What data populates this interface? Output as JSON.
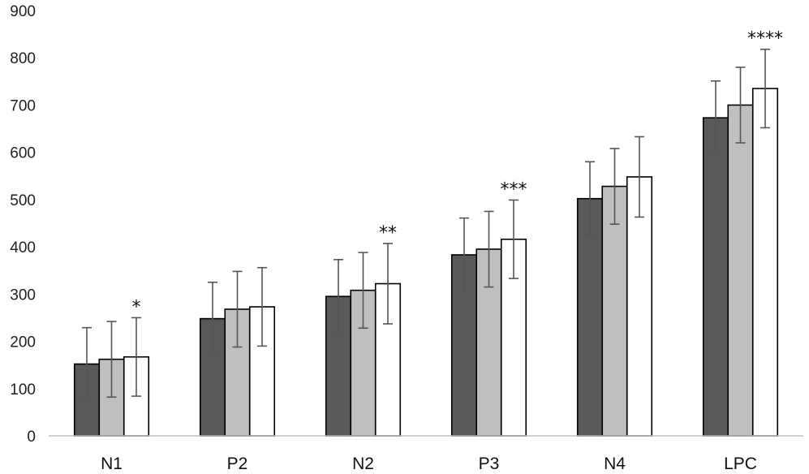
{
  "chart_data": {
    "type": "bar",
    "title": "",
    "xlabel": "",
    "ylabel": "",
    "ylim": [
      0,
      900
    ],
    "yticks": [
      0,
      100,
      200,
      300,
      400,
      500,
      600,
      700,
      800,
      900
    ],
    "grid": false,
    "legend": "none",
    "categories": [
      "N1",
      "P2",
      "N2",
      "P3",
      "N4",
      "LPC"
    ],
    "series": [
      {
        "color": "#595959",
        "values": [
          152,
          248,
          295,
          383,
          502,
          673
        ],
        "errors": [
          77,
          77,
          78,
          78,
          78,
          78
        ]
      },
      {
        "color": "#bfbfbf",
        "values": [
          162,
          268,
          308,
          395,
          528,
          700
        ],
        "errors": [
          80,
          80,
          80,
          80,
          80,
          80
        ]
      },
      {
        "color": "#ffffff",
        "values": [
          167,
          273,
          322,
          416,
          548,
          735
        ],
        "errors": [
          83,
          83,
          85,
          83,
          85,
          83
        ]
      }
    ],
    "annotations": [
      "*",
      "",
      "**",
      "***",
      "",
      "****"
    ]
  }
}
